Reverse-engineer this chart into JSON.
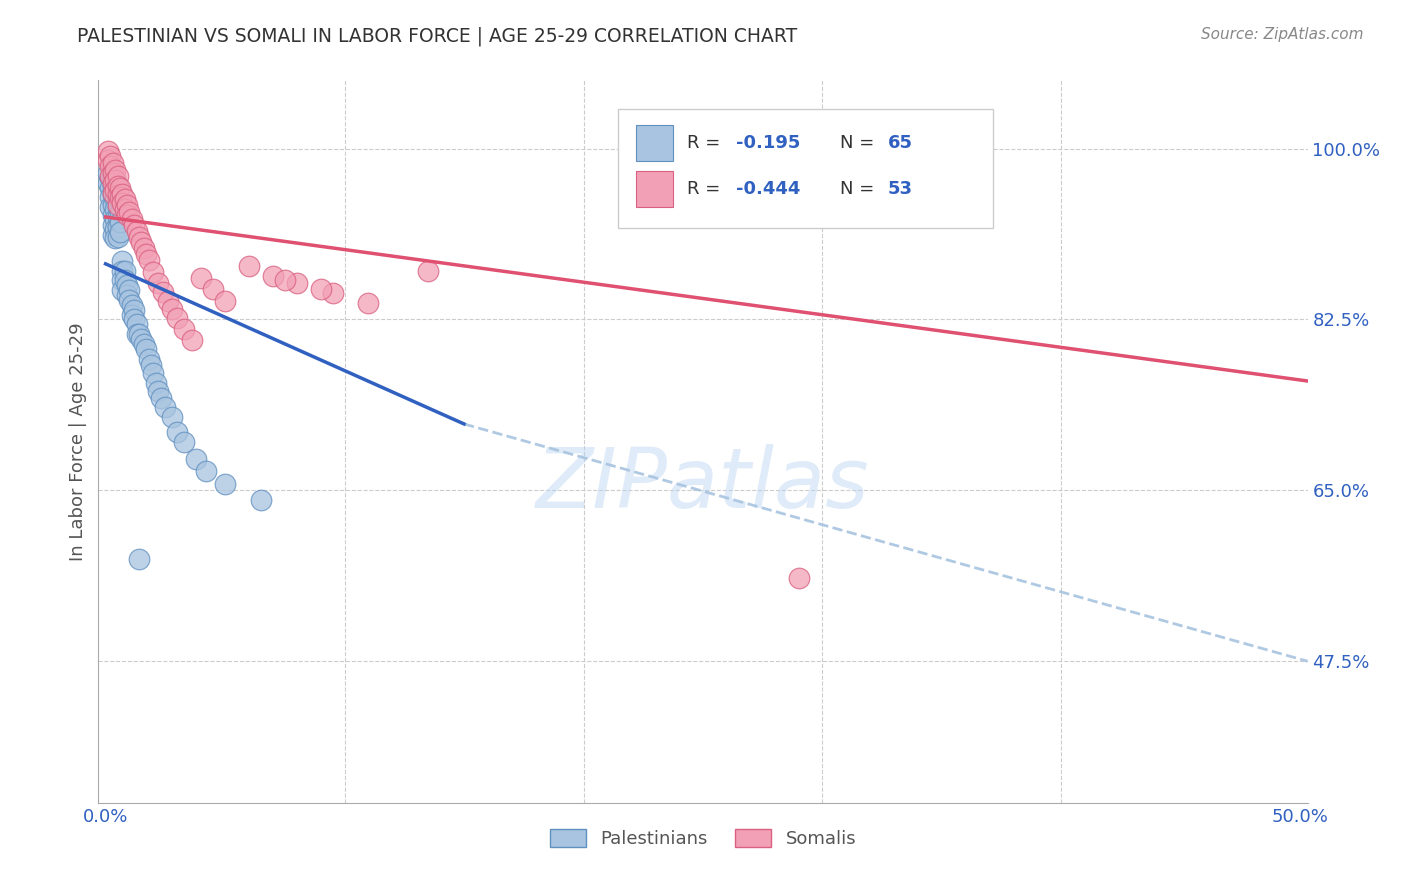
{
  "title": "PALESTINIAN VS SOMALI IN LABOR FORCE | AGE 25-29 CORRELATION CHART",
  "source": "Source: ZipAtlas.com",
  "ylabel": "In Labor Force | Age 25-29",
  "xlim": [
    -0.003,
    0.503
  ],
  "ylim": [
    0.33,
    1.07
  ],
  "xtick_positions": [
    0.0,
    0.1,
    0.2,
    0.3,
    0.4,
    0.5
  ],
  "xtick_labels": [
    "0.0%",
    "",
    "",
    "",
    "",
    "50.0%"
  ],
  "ytick_vals": [
    1.0,
    0.825,
    0.65,
    0.475
  ],
  "ytick_labels": [
    "100.0%",
    "82.5%",
    "65.0%",
    "47.5%"
  ],
  "blue_color": "#a8c4e0",
  "blue_edge": "#6090c0",
  "pink_color": "#f2a0b5",
  "pink_edge": "#d96080",
  "blue_line_color": "#3060c0",
  "pink_line_color": "#e05070",
  "dash_line_color": "#a8c4e0",
  "grid_color": "#cccccc",
  "title_color": "#333333",
  "source_color": "#888888",
  "ylabel_color": "#555555",
  "tick_color": "#3060c0",
  "legend_r_blue": "-0.195",
  "legend_n_blue": "65",
  "legend_r_pink": "-0.444",
  "legend_n_pink": "53",
  "watermark": "ZIPatlas",
  "blue_line_x": [
    0.0,
    0.15
  ],
  "blue_line_y": [
    0.882,
    0.718
  ],
  "pink_line_x": [
    0.0,
    0.503
  ],
  "pink_line_y": [
    0.93,
    0.762
  ],
  "dash_line_x": [
    0.15,
    0.503
  ],
  "dash_line_y": [
    0.718,
    0.475
  ],
  "pal_x": [
    0.001,
    0.001,
    0.002,
    0.002,
    0.002,
    0.002,
    0.003,
    0.003,
    0.003,
    0.003,
    0.003,
    0.003,
    0.003,
    0.004,
    0.004,
    0.004,
    0.004,
    0.004,
    0.004,
    0.004,
    0.005,
    0.005,
    0.005,
    0.005,
    0.005,
    0.005,
    0.006,
    0.006,
    0.006,
    0.006,
    0.007,
    0.007,
    0.007,
    0.007,
    0.008,
    0.008,
    0.009,
    0.009,
    0.01,
    0.01,
    0.011,
    0.011,
    0.012,
    0.012,
    0.013,
    0.013,
    0.014,
    0.015,
    0.016,
    0.017,
    0.018,
    0.019,
    0.02,
    0.021,
    0.022,
    0.023,
    0.025,
    0.028,
    0.03,
    0.033,
    0.038,
    0.042,
    0.05,
    0.065,
    0.014
  ],
  "pal_y": [
    0.975,
    0.965,
    0.97,
    0.96,
    0.95,
    0.94,
    0.972,
    0.962,
    0.952,
    0.942,
    0.932,
    0.922,
    0.912,
    0.968,
    0.958,
    0.948,
    0.938,
    0.928,
    0.918,
    0.908,
    0.96,
    0.95,
    0.94,
    0.93,
    0.92,
    0.91,
    0.945,
    0.935,
    0.925,
    0.915,
    0.885,
    0.875,
    0.865,
    0.855,
    0.875,
    0.865,
    0.86,
    0.85,
    0.855,
    0.845,
    0.84,
    0.83,
    0.835,
    0.825,
    0.82,
    0.81,
    0.81,
    0.805,
    0.8,
    0.795,
    0.785,
    0.778,
    0.77,
    0.76,
    0.752,
    0.745,
    0.735,
    0.725,
    0.71,
    0.7,
    0.682,
    0.67,
    0.657,
    0.64,
    0.58
  ],
  "som_x": [
    0.001,
    0.001,
    0.002,
    0.002,
    0.002,
    0.003,
    0.003,
    0.003,
    0.003,
    0.004,
    0.004,
    0.004,
    0.005,
    0.005,
    0.005,
    0.005,
    0.006,
    0.006,
    0.007,
    0.007,
    0.008,
    0.008,
    0.009,
    0.009,
    0.01,
    0.011,
    0.012,
    0.013,
    0.014,
    0.015,
    0.016,
    0.017,
    0.018,
    0.02,
    0.022,
    0.024,
    0.026,
    0.028,
    0.03,
    0.033,
    0.036,
    0.04,
    0.045,
    0.05,
    0.06,
    0.07,
    0.08,
    0.095,
    0.11,
    0.135,
    0.075,
    0.09,
    0.29
  ],
  "som_y": [
    0.998,
    0.988,
    0.992,
    0.982,
    0.972,
    0.985,
    0.975,
    0.965,
    0.955,
    0.978,
    0.968,
    0.958,
    0.972,
    0.962,
    0.952,
    0.942,
    0.96,
    0.95,
    0.954,
    0.944,
    0.948,
    0.938,
    0.942,
    0.932,
    0.935,
    0.928,
    0.922,
    0.916,
    0.91,
    0.904,
    0.898,
    0.892,
    0.886,
    0.874,
    0.862,
    0.853,
    0.844,
    0.836,
    0.827,
    0.815,
    0.804,
    0.868,
    0.856,
    0.844,
    0.88,
    0.87,
    0.862,
    0.852,
    0.842,
    0.875,
    0.865,
    0.856,
    0.56
  ]
}
